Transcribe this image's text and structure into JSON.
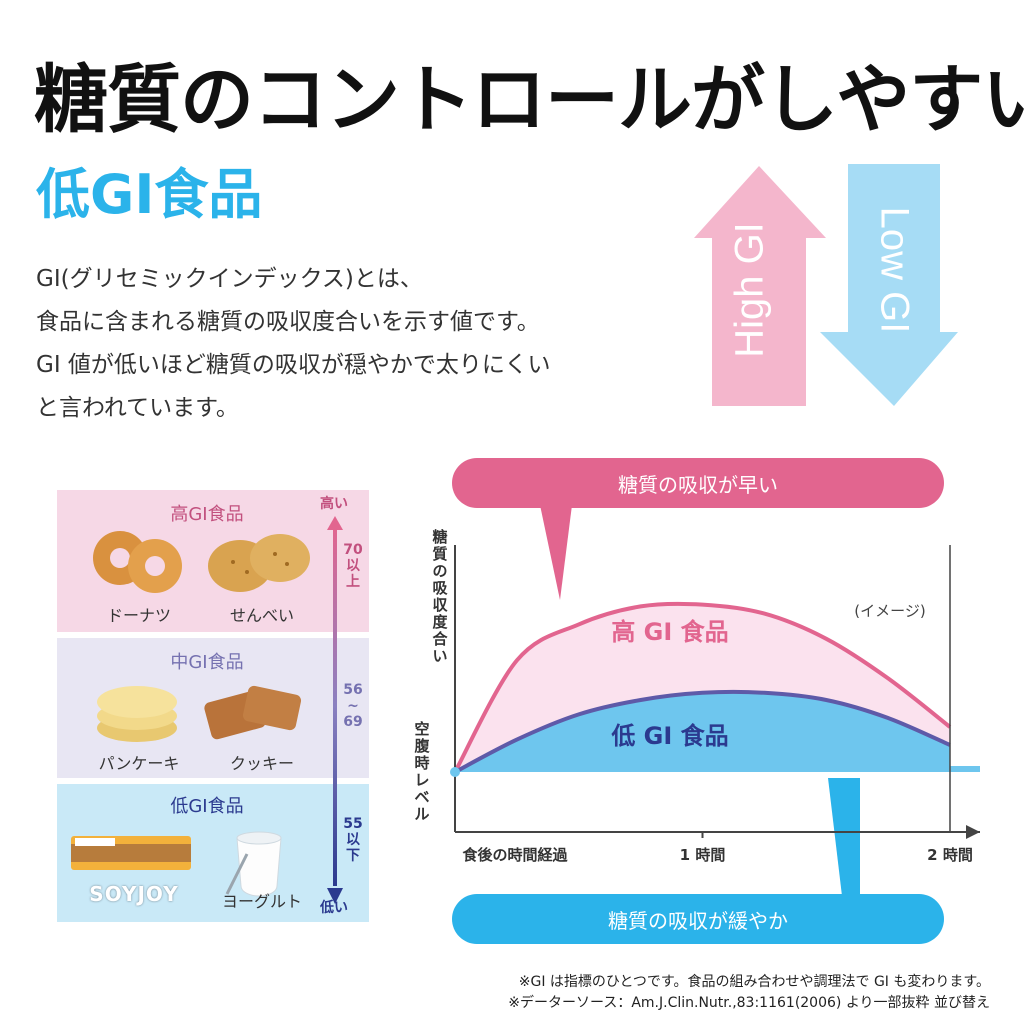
{
  "title": "糖質のコントロールがしやすい",
  "subtitle": "低GI食品",
  "description": [
    "GI(グリセミックインデックス)とは、",
    "食品に含まれる糖質の吸収度合いを示す値です。",
    "GI 値が低いほど糖質の吸収が穏やかで太りにくい",
    "と言われています。"
  ],
  "arrows": {
    "high": "High GI",
    "low": "Low GI"
  },
  "scale_panel": {
    "rows": [
      {
        "title": "高GI食品",
        "items": [
          "ドーナツ",
          "せんべい"
        ],
        "range": "70以上",
        "color": "#f6d8e6"
      },
      {
        "title": "中GI食品",
        "items": [
          "パンケーキ",
          "クッキー"
        ],
        "range": "56〜69",
        "color": "#e8e6f3"
      },
      {
        "title": "低GI食品",
        "items": [
          "SOYJOY",
          "ヨーグルト"
        ],
        "range": "55以下",
        "color": "#c9e9f7"
      }
    ],
    "top_label": "高い",
    "bottom_label": "低い",
    "range_high": [
      "70",
      "以",
      "上"
    ],
    "range_mid": [
      "56",
      "~",
      "69"
    ],
    "range_low": [
      "55",
      "以",
      "下"
    ],
    "brand": "SOYJOY"
  },
  "bubbles": {
    "fast": "糖質の吸収が早い",
    "slow": "糖質の吸収が緩やか"
  },
  "chart_data": {
    "type": "area",
    "ylabel": "糖質の吸収度合い",
    "baseline_label": "空腹時レベル",
    "x_tick_labels": [
      "食後の時間経過",
      "1 時間",
      "2 時間"
    ],
    "x": [
      0,
      0.25,
      0.5,
      0.75,
      1.0,
      1.25,
      1.5,
      1.75,
      2.0
    ],
    "annotation": "(イメージ)",
    "series": [
      {
        "name": "高 GI 食品",
        "values": [
          0,
          0.62,
          0.82,
          0.92,
          0.93,
          0.88,
          0.74,
          0.52,
          0.25
        ],
        "color": "#e2658f"
      },
      {
        "name": "低 GI 食品",
        "values": [
          0,
          0.18,
          0.32,
          0.4,
          0.44,
          0.44,
          0.4,
          0.3,
          0.15
        ],
        "color": "#5e5aa8"
      }
    ]
  },
  "notes": [
    "※GI は指標のひとつです。食品の組み合わせや調理法で GI も変わります。",
    "※データーソース：Am.J.Clin.Nutr.,83:1161(2006) より一部抜粋 並び替え"
  ],
  "colors": {
    "blue": "#2bb3ea",
    "pink": "#e2658f",
    "purple": "#5e5aa8",
    "dark_blue": "#2b3a8f"
  }
}
